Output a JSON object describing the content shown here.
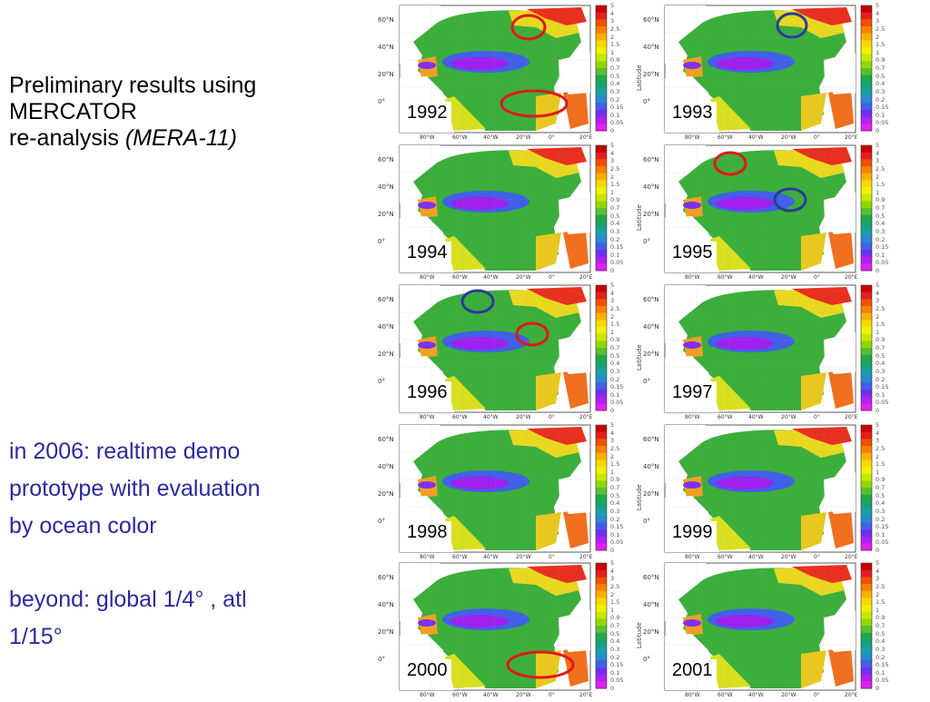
{
  "intro": {
    "line1": "Preliminary results using",
    "line2": "MERCATOR",
    "line3a": "re-analysis",
    "line3b": "(MERA-11)"
  },
  "notes": {
    "line1": "in 2006: realtime demo",
    "line2": "prototype with evaluation",
    "line3": "by ocean color",
    "line4": "beyond: global 1/4°  , atl",
    "line5": "1/15°"
  },
  "axis": {
    "lat_labels": [
      "60°N",
      "40°N",
      "20°N",
      "0°"
    ],
    "lon_labels": [
      "80°W",
      "60°W",
      "40°W",
      "20°W",
      "0°",
      "20°E"
    ],
    "lat_title": "Latitude"
  },
  "colorbar": {
    "ticks": [
      "5",
      "4",
      "3",
      "2.5",
      "2",
      "1.5",
      "1",
      "0.9",
      "0.7",
      "0.5",
      "0.4",
      "0.3",
      "0.2",
      "0.15",
      "0.1",
      "0.05",
      "0"
    ],
    "colors": [
      "#c80000",
      "#e61e1e",
      "#f05000",
      "#f88000",
      "#f8b000",
      "#f8d800",
      "#f0f000",
      "#c8e800",
      "#90d800",
      "#58c030",
      "#20a848",
      "#18a078",
      "#18a0a8",
      "#2888d0",
      "#4060e8",
      "#7030f0",
      "#b020f0",
      "#e020f0"
    ]
  },
  "panels": [
    {
      "year": "1992",
      "lat_title": false,
      "circles": [
        {
          "color": "red"
        },
        {
          "color": "red"
        }
      ]
    },
    {
      "year": "1993",
      "lat_title": true,
      "circles": [
        {
          "color": "blue"
        }
      ]
    },
    {
      "year": "1994",
      "lat_title": false,
      "circles": []
    },
    {
      "year": "1995",
      "lat_title": true,
      "circles": [
        {
          "color": "red"
        },
        {
          "color": "blue"
        }
      ]
    },
    {
      "year": "1996",
      "lat_title": false,
      "circles": [
        {
          "color": "blue"
        },
        {
          "color": "red"
        }
      ]
    },
    {
      "year": "1997",
      "lat_title": true,
      "circles": []
    },
    {
      "year": "1998",
      "lat_title": false,
      "circles": []
    },
    {
      "year": "1999",
      "lat_title": true,
      "circles": []
    },
    {
      "year": "2000",
      "lat_title": false,
      "circles": [
        {
          "color": "red"
        }
      ]
    },
    {
      "year": "2001",
      "lat_title": true,
      "circles": []
    }
  ]
}
